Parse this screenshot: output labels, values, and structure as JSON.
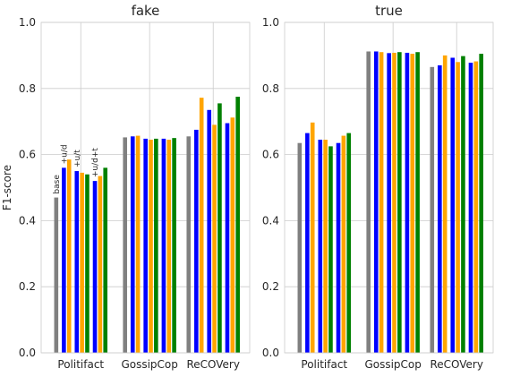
{
  "chart_data": [
    {
      "type": "bar",
      "title": "fake",
      "ylabel": "F1-score",
      "ylim": [
        0,
        1.0
      ],
      "yticks": [
        "0.0",
        "0.2",
        "0.4",
        "0.6",
        "0.8",
        "1.0"
      ],
      "grid": true,
      "categories": [
        "Politifact",
        "GossipCop",
        "ReCOVery"
      ],
      "series": [
        {
          "name": "base",
          "color": "#808080",
          "values": [
            0.47,
            0.652,
            0.655
          ]
        },
        {
          "name": "+u/d",
          "color": "#0000ff",
          "values": [
            0.56,
            0.655,
            0.675
          ]
        },
        {
          "name": "",
          "color": "#ffa500",
          "values": [
            0.585,
            0.657,
            0.772
          ]
        },
        {
          "name": "+u/t",
          "color": "#0000ff",
          "values": [
            0.55,
            0.648,
            0.735
          ]
        },
        {
          "name": "",
          "color": "#ffa500",
          "values": [
            0.545,
            0.645,
            0.69
          ]
        },
        {
          "name": "",
          "color": "#008000",
          "values": [
            0.54,
            0.648,
            0.755
          ]
        },
        {
          "name": "+u/d+t",
          "color": "#0000ff",
          "values": [
            0.52,
            0.648,
            0.695
          ]
        },
        {
          "name": "",
          "color": "#ffa500",
          "values": [
            0.535,
            0.645,
            0.712
          ]
        },
        {
          "name": "",
          "color": "#008000",
          "values": [
            0.56,
            0.65,
            0.775
          ]
        }
      ]
    },
    {
      "type": "bar",
      "title": "true",
      "ylabel": "",
      "ylim": [
        0,
        1.0
      ],
      "yticks": [
        "0.0",
        "0.2",
        "0.4",
        "0.6",
        "0.8",
        "1.0"
      ],
      "grid": true,
      "categories": [
        "Politifact",
        "GossipCop",
        "ReCOVery"
      ],
      "series": [
        {
          "name": "",
          "color": "#808080",
          "values": [
            0.635,
            0.912,
            0.865
          ]
        },
        {
          "name": "",
          "color": "#0000ff",
          "values": [
            0.665,
            0.912,
            0.87
          ]
        },
        {
          "name": "",
          "color": "#ffa500",
          "values": [
            0.697,
            0.91,
            0.9
          ]
        },
        {
          "name": "",
          "color": "#0000ff",
          "values": [
            0.645,
            0.907,
            0.893
          ]
        },
        {
          "name": "",
          "color": "#ffa500",
          "values": [
            0.645,
            0.908,
            0.88
          ]
        },
        {
          "name": "",
          "color": "#008000",
          "values": [
            0.625,
            0.91,
            0.898
          ]
        },
        {
          "name": "",
          "color": "#0000ff",
          "values": [
            0.635,
            0.908,
            0.878
          ]
        },
        {
          "name": "",
          "color": "#ffa500",
          "values": [
            0.657,
            0.905,
            0.882
          ]
        },
        {
          "name": "",
          "color": "#008000",
          "values": [
            0.665,
            0.91,
            0.905
          ]
        }
      ]
    }
  ]
}
